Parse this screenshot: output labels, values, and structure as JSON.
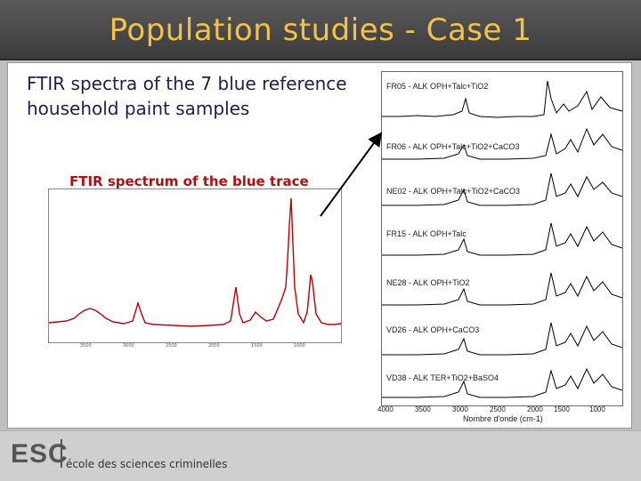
{
  "slide": {
    "title": "Population studies - Case 1",
    "main_text": "FTIR spectra of the 7 blue reference household paint samples",
    "trace_caption": "FTIR spectrum of the blue trace"
  },
  "trace_axis_ticks": [
    "3500",
    "3000",
    "2500",
    "2000",
    "1500",
    "1000"
  ],
  "spectra": [
    {
      "label": "FR05 - ALK OPH+Talc+TiO2"
    },
    {
      "label": "FR06 - ALK OPH+Talc+TiO2+CaCO3"
    },
    {
      "label": "NE02 - ALK OPH+Talc+TiO2+CaCO3"
    },
    {
      "label": "FR15 - ALK OPH+Talc"
    },
    {
      "label": "NE28 - ALK OPH+TiO2"
    },
    {
      "label": "VD26 - ALK OPH+CaCO3"
    },
    {
      "label": "VD38 - ALK TER+TiO2+BaSO4"
    }
  ],
  "stack_axis": {
    "ticks": [
      "4000",
      "3500",
      "3000",
      "2500",
      "2000",
      "1500",
      "1000"
    ],
    "title": "Nombre d'onde (cm-1)"
  },
  "footer": {
    "logo_text": "ESC",
    "school_name": "école des sciences criminelles"
  },
  "colors": {
    "title": "#f2c24a",
    "trace": "#c00000",
    "spectra": "#000000",
    "logo_accent": "#c0392b"
  }
}
